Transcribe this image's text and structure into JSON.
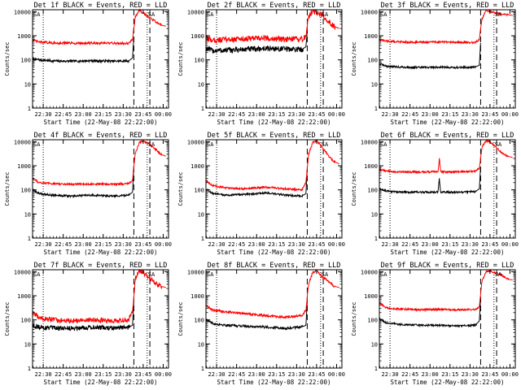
{
  "figure": {
    "x_ticks": [
      "22:30",
      "22:45",
      "23:00",
      "23:15",
      "23:30",
      "23:45",
      "00:00"
    ],
    "y_ticks": [
      "1",
      "10",
      "100",
      "1000",
      "10000"
    ],
    "ylabel": "Counts/sec",
    "xlabel": "Start Time (22-May-08 22:22:00)",
    "colors": {
      "events": "#000000",
      "lld": "#ff0000",
      "axis": "#000000"
    },
    "flags": [
      "SA",
      "SA"
    ]
  },
  "chart_data": [
    {
      "type": "line",
      "title": "Det 1f BLACK = Events, RED = LLD",
      "x_range_minutes": [
        0,
        102
      ],
      "ylim": [
        1,
        12000
      ],
      "yscale": "log",
      "series": [
        {
          "name": "BLACK = Events",
          "x": [
            0,
            5,
            15,
            30,
            45,
            60,
            72,
            75,
            76
          ],
          "y": [
            110,
            100,
            90,
            88,
            92,
            88,
            90,
            120,
            900
          ]
        },
        {
          "name": "RED = LLD",
          "x": [
            0,
            5,
            15,
            30,
            45,
            60,
            72,
            75,
            77,
            80,
            83,
            87,
            92,
            96,
            100
          ],
          "y": [
            650,
            550,
            500,
            490,
            495,
            490,
            480,
            700,
            6000,
            11000,
            9000,
            6000,
            4000,
            2800,
            2500
          ]
        }
      ],
      "dashed_lines": [
        76,
        88,
        102
      ],
      "dotted_lines": [
        8,
        86
      ]
    },
    {
      "type": "line",
      "title": "Det 2f BLACK = Events, RED = LLD",
      "x_range_minutes": [
        0,
        102
      ],
      "ylim": [
        1,
        12000
      ],
      "yscale": "log",
      "series": [
        {
          "name": "BLACK = Events",
          "x": [
            0,
            5,
            15,
            30,
            45,
            60,
            72,
            75,
            76
          ],
          "y": [
            300,
            240,
            250,
            270,
            300,
            280,
            270,
            350,
            1500
          ]
        },
        {
          "name": "RED = LLD",
          "x": [
            0,
            5,
            15,
            30,
            45,
            60,
            72,
            75,
            77,
            80,
            83,
            87,
            92,
            96,
            100
          ],
          "y": [
            800,
            650,
            700,
            750,
            800,
            700,
            720,
            900,
            6000,
            11000,
            9000,
            7000,
            4000,
            2500,
            2000
          ]
        }
      ],
      "dashed_lines": [
        76,
        88,
        102
      ],
      "dotted_lines": [
        8,
        86
      ]
    },
    {
      "type": "line",
      "title": "Det 3f BLACK = Events, RED = LLD",
      "x_range_minutes": [
        0,
        102
      ],
      "ylim": [
        1,
        12000
      ],
      "yscale": "log",
      "series": [
        {
          "name": "BLACK = Events",
          "x": [
            0,
            5,
            15,
            30,
            45,
            60,
            72,
            75,
            76
          ],
          "y": [
            70,
            55,
            50,
            48,
            50,
            48,
            50,
            60,
            500
          ]
        },
        {
          "name": "RED = LLD",
          "x": [
            0,
            5,
            15,
            30,
            45,
            60,
            72,
            75,
            77,
            80,
            83,
            87,
            92,
            96,
            100
          ],
          "y": [
            700,
            600,
            560,
            540,
            550,
            530,
            520,
            700,
            5000,
            11000,
            10000,
            9000,
            8000,
            7500,
            7000
          ]
        }
      ],
      "dashed_lines": [
        76,
        88,
        102
      ],
      "dotted_lines": [
        8,
        86
      ]
    },
    {
      "type": "line",
      "title": "Det 4f BLACK = Events, RED = LLD",
      "x_range_minutes": [
        0,
        102
      ],
      "ylim": [
        1,
        12000
      ],
      "yscale": "log",
      "series": [
        {
          "name": "BLACK = Events",
          "x": [
            0,
            5,
            15,
            30,
            45,
            60,
            72,
            75,
            76
          ],
          "y": [
            100,
            70,
            60,
            55,
            60,
            55,
            60,
            80,
            1000
          ]
        },
        {
          "name": "RED = LLD",
          "x": [
            0,
            5,
            15,
            30,
            45,
            60,
            72,
            75,
            77,
            80,
            83,
            87,
            92,
            96,
            100
          ],
          "y": [
            300,
            200,
            180,
            170,
            175,
            170,
            180,
            250,
            3000,
            9000,
            11000,
            8000,
            5000,
            3000,
            2500
          ]
        }
      ],
      "dashed_lines": [
        76,
        88,
        102
      ],
      "dotted_lines": [
        8,
        86
      ]
    },
    {
      "type": "line",
      "title": "Det 5f BLACK = Events, RED = LLD",
      "x_range_minutes": [
        0,
        102
      ],
      "ylim": [
        1,
        12000
      ],
      "yscale": "log",
      "series": [
        {
          "name": "BLACK = Events",
          "x": [
            0,
            5,
            15,
            30,
            45,
            60,
            72,
            75,
            76
          ],
          "y": [
            110,
            70,
            60,
            65,
            75,
            60,
            55,
            70,
            700
          ]
        },
        {
          "name": "RED = LLD",
          "x": [
            0,
            5,
            15,
            30,
            45,
            60,
            72,
            75,
            77,
            80,
            83,
            87,
            92,
            96,
            100
          ],
          "y": [
            250,
            150,
            120,
            110,
            130,
            110,
            100,
            200,
            3000,
            9000,
            11000,
            6000,
            2500,
            1500,
            1200
          ]
        }
      ],
      "dashed_lines": [
        76,
        88,
        102
      ],
      "dotted_lines": [
        8,
        86
      ]
    },
    {
      "type": "line",
      "title": "Det 6f BLACK = Events, RED = LLD",
      "x_range_minutes": [
        0,
        102
      ],
      "ylim": [
        1,
        12000
      ],
      "yscale": "log",
      "series": [
        {
          "name": "BLACK = Events",
          "x": [
            0,
            5,
            15,
            30,
            44,
            45,
            46,
            60,
            72,
            75,
            76
          ],
          "y": [
            110,
            90,
            80,
            80,
            80,
            300,
            80,
            80,
            85,
            110,
            900
          ]
        },
        {
          "name": "RED = LLD",
          "x": [
            0,
            5,
            15,
            30,
            44,
            45,
            46,
            60,
            72,
            75,
            77,
            80,
            83,
            87,
            92,
            96,
            100
          ],
          "y": [
            700,
            600,
            550,
            550,
            560,
            2000,
            560,
            560,
            600,
            800,
            6000,
            11000,
            10000,
            6000,
            3500,
            2500,
            2200
          ]
        }
      ],
      "dashed_lines": [
        76,
        88,
        102
      ],
      "dotted_lines": [
        8,
        86
      ]
    },
    {
      "type": "line",
      "title": "Det 7f BLACK = Events, RED = LLD",
      "x_range_minutes": [
        0,
        102
      ],
      "ylim": [
        1,
        12000
      ],
      "yscale": "log",
      "series": [
        {
          "name": "BLACK = Events",
          "x": [
            0,
            5,
            15,
            30,
            45,
            60,
            72,
            75,
            76
          ],
          "y": [
            60,
            50,
            45,
            45,
            50,
            45,
            48,
            60,
            600
          ]
        },
        {
          "name": "RED = LLD",
          "x": [
            0,
            5,
            15,
            30,
            45,
            60,
            72,
            75,
            77,
            80,
            83,
            87,
            92,
            96,
            100
          ],
          "y": [
            200,
            120,
            100,
            90,
            100,
            90,
            100,
            200,
            5000,
            11000,
            9000,
            6000,
            3500,
            2500,
            2200
          ]
        }
      ],
      "dashed_lines": [
        76,
        88,
        102
      ],
      "dotted_lines": [
        8,
        86
      ]
    },
    {
      "type": "line",
      "title": "Det 8f BLACK = Events, RED = LLD",
      "x_range_minutes": [
        0,
        102
      ],
      "ylim": [
        1,
        12000
      ],
      "yscale": "log",
      "series": [
        {
          "name": "BLACK = Events",
          "x": [
            0,
            5,
            15,
            30,
            45,
            60,
            72,
            75,
            76
          ],
          "y": [
            110,
            70,
            60,
            55,
            50,
            45,
            50,
            60,
            600
          ]
        },
        {
          "name": "RED = LLD",
          "x": [
            0,
            5,
            15,
            30,
            45,
            60,
            72,
            75,
            77,
            80,
            83,
            87,
            92,
            96,
            100
          ],
          "y": [
            400,
            250,
            220,
            180,
            150,
            130,
            150,
            250,
            3000,
            9000,
            11000,
            6000,
            4000,
            2500,
            2200
          ]
        }
      ],
      "dashed_lines": [
        76,
        88,
        102
      ],
      "dotted_lines": [
        8,
        86
      ]
    },
    {
      "type": "line",
      "title": "Det 9f BLACK = Events, RED = LLD",
      "x_range_minutes": [
        0,
        102
      ],
      "ylim": [
        1,
        12000
      ],
      "yscale": "log",
      "series": [
        {
          "name": "BLACK = Events",
          "x": [
            0,
            5,
            15,
            30,
            45,
            60,
            72,
            75,
            76
          ],
          "y": [
            110,
            75,
            65,
            60,
            60,
            55,
            60,
            90,
            800
          ]
        },
        {
          "name": "RED = LLD",
          "x": [
            0,
            5,
            15,
            30,
            45,
            60,
            72,
            75,
            77,
            80,
            83,
            87,
            92,
            96,
            100
          ],
          "y": [
            500,
            320,
            280,
            260,
            270,
            260,
            270,
            350,
            4000,
            10000,
            11000,
            9000,
            7000,
            5000,
            4500
          ]
        }
      ],
      "dashed_lines": [
        76,
        88,
        102
      ],
      "dotted_lines": [
        8,
        86
      ]
    }
  ]
}
